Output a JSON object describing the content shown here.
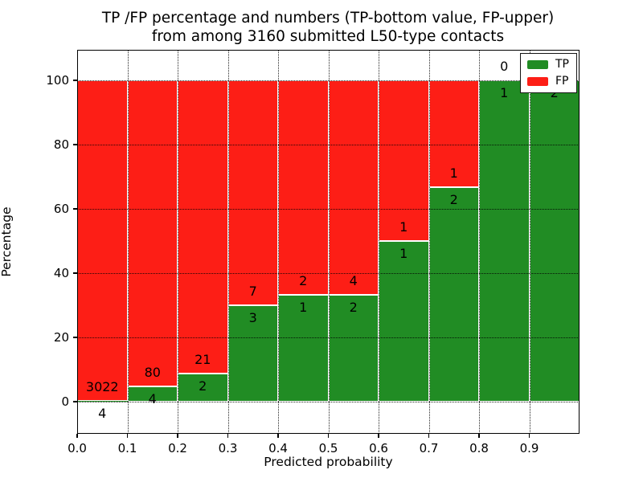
{
  "title": {
    "line1": "TP /FP percentage and numbers (TP-bottom value, FP-upper)",
    "line2": "from among 3160 submitted L50-type contacts"
  },
  "axes": {
    "xlabel": "Predicted probability",
    "ylabel": "Percentage",
    "xticks": [
      "0.0",
      "0.1",
      "0.2",
      "0.3",
      "0.4",
      "0.5",
      "0.6",
      "0.7",
      "0.8",
      "0.9"
    ],
    "yticks": [
      "0",
      "20",
      "40",
      "60",
      "80",
      "100"
    ]
  },
  "legend": {
    "position": "upper right",
    "entries": [
      {
        "label": "TP",
        "color": "#218c24"
      },
      {
        "label": "FP",
        "color": "#fd1e16"
      }
    ]
  },
  "colors": {
    "tp": "#218c24",
    "fp": "#fd1e16",
    "grid": "#000000",
    "text": "#000000",
    "background": "#ffffff"
  },
  "chart_data": {
    "type": "bar",
    "stacked": true,
    "normalized": "percent of bin total",
    "title": "TP /FP percentage and numbers (TP-bottom value, FP-upper) from among 3160 submitted L50-type contacts",
    "xlabel": "Predicted probability",
    "ylabel": "Percentage",
    "bins": [
      "0.0-0.1",
      "0.1-0.2",
      "0.2-0.3",
      "0.3-0.4",
      "0.4-0.5",
      "0.5-0.6",
      "0.6-0.7",
      "0.7-0.8",
      "0.8-0.9",
      "0.9-1.0"
    ],
    "bin_starts": [
      0.0,
      0.1,
      0.2,
      0.3,
      0.4,
      0.5,
      0.6,
      0.7,
      0.8,
      0.9
    ],
    "bin_width": 0.1,
    "series": [
      {
        "name": "TP",
        "counts": [
          4,
          4,
          2,
          3,
          1,
          2,
          1,
          2,
          1,
          2
        ]
      },
      {
        "name": "FP",
        "counts": [
          3022,
          80,
          21,
          7,
          2,
          4,
          1,
          1,
          0,
          0
        ]
      }
    ],
    "tp_percent_of_bin": [
      0.13,
      4.76,
      8.7,
      30.0,
      33.33,
      33.33,
      50.0,
      66.67,
      100.0,
      100.0
    ],
    "tp_labels": [
      "4",
      "4",
      "2",
      "3",
      "1",
      "2",
      "1",
      "2",
      "1",
      "2"
    ],
    "fp_labels": [
      "3022",
      "80",
      "21",
      "7",
      "2",
      "4",
      "1",
      "1",
      "0",
      ""
    ],
    "fp_label_note": "FP label of last bin hidden behind legend",
    "total_contacts": 3160,
    "xlim": [
      0.0,
      1.0
    ],
    "ylim": [
      -10,
      109.5
    ],
    "grid": true,
    "grid_style": "dotted",
    "legend_position": "upper right"
  }
}
